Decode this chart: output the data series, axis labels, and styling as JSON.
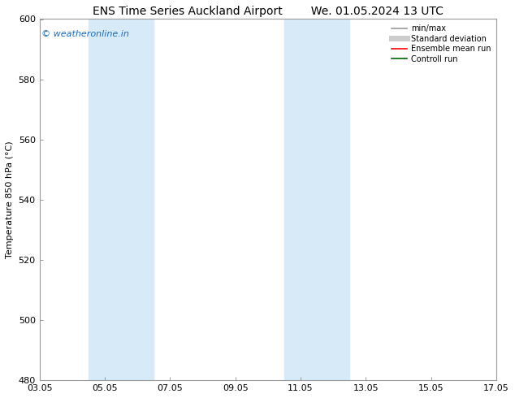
{
  "title_left": "ENS Time Series Auckland Airport",
  "title_right": "We. 01.05.2024 13 UTC",
  "ylabel": "Temperature 850 hPa (°C)",
  "ylim": [
    480,
    600
  ],
  "yticks": [
    480,
    500,
    520,
    540,
    560,
    580,
    600
  ],
  "xtick_labels": [
    "03.05",
    "05.05",
    "07.05",
    "09.05",
    "11.05",
    "13.05",
    "15.05",
    "17.05"
  ],
  "xtick_positions": [
    0,
    2,
    4,
    6,
    8,
    10,
    12,
    14
  ],
  "shaded_bands": [
    {
      "x_start": 1.5,
      "x_end": 3.5,
      "color": "#d6eaf8"
    },
    {
      "x_start": 7.5,
      "x_end": 9.5,
      "color": "#d6eaf8"
    }
  ],
  "watermark_text": "© weatheronline.in",
  "watermark_color": "#1a6bba",
  "legend_entries": [
    {
      "label": "min/max",
      "color": "#999999",
      "lw": 1.2,
      "style": "solid"
    },
    {
      "label": "Standard deviation",
      "color": "#cccccc",
      "lw": 5,
      "style": "solid"
    },
    {
      "label": "Ensemble mean run",
      "color": "#ff0000",
      "lw": 1.2,
      "style": "solid"
    },
    {
      "label": "Controll run",
      "color": "#006400",
      "lw": 1.2,
      "style": "solid"
    }
  ],
  "bg_color": "#ffffff",
  "plot_bg_color": "#ffffff",
  "spine_color": "#999999",
  "title_fontsize": 10,
  "ylabel_fontsize": 8,
  "tick_fontsize": 8,
  "watermark_fontsize": 8,
  "legend_fontsize": 7
}
